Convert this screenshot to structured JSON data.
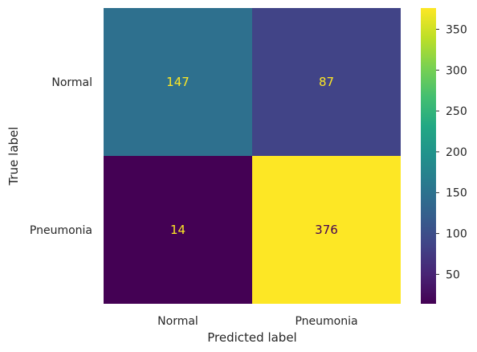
{
  "chart_data": {
    "type": "heatmap",
    "title": "",
    "xlabel": "Predicted label",
    "ylabel": "True label",
    "x_categories": [
      "Normal",
      "Pneumonia"
    ],
    "y_categories": [
      "Normal",
      "Pneumonia"
    ],
    "values": [
      [
        147,
        87
      ],
      [
        14,
        376
      ]
    ],
    "colormap": "viridis",
    "color_range": [
      14,
      376
    ],
    "colorbar_ticks": [
      50,
      100,
      150,
      200,
      250,
      300,
      350
    ],
    "grid": false,
    "colorbar_position": "right"
  }
}
